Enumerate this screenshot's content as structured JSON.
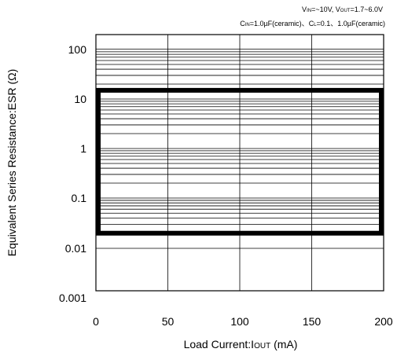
{
  "chart_data": {
    "type": "area",
    "conditions": {
      "line1": {
        "vin_prefix": "V",
        "vin_sub": "IN",
        "vin_value": "=~10V, ",
        "vout_prefix": "V",
        "vout_sub": "OUT",
        "vout_value": "=1.7~6.0V"
      },
      "line2": {
        "cin_prefix": "C",
        "cin_sub": "IN",
        "cin_value": "=1.0µF(ceramic)、",
        "cl_prefix": "C",
        "cl_sub": "L",
        "cl_value": "=0.1、1.0µF(ceramic)"
      }
    },
    "xlabel": {
      "main": "Load Current:I",
      "sub": "OUT",
      "unit": " (mA)"
    },
    "ylabel": "Equivalent Series Resistance:ESR (Ω)",
    "x_ticks": [
      "0",
      "50",
      "100",
      "150",
      "200"
    ],
    "y_ticks": [
      "0.001",
      "0.01",
      "0.1",
      "1",
      "10",
      "100"
    ],
    "xlim": [
      0,
      200
    ],
    "ylim": [
      0.001,
      300
    ],
    "y_scale": "log",
    "grid": true,
    "stable_region": {
      "x": [
        0,
        200
      ],
      "esr_min": 0.02,
      "esr_max": 15
    }
  }
}
